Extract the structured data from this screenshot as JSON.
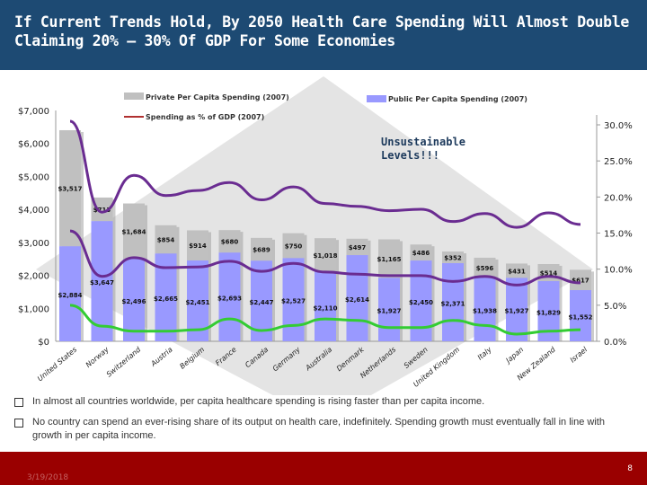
{
  "slide": {
    "title": "If Current Trends Hold, By 2050 Health Care Spending Will Almost Double Claiming 20% – 30% Of GDP For Some Economies",
    "bullets": [
      "In almost all countries worldwide, per capita healthcare spending is rising faster than per capita income.",
      "No country can spend an ever-rising share of its output on health care, indefinitely. Spending growth must eventually fall in line with growth in per capita income."
    ],
    "date": "3/19/2018",
    "page_number": "8",
    "annotation": "Unsustainable Levels!!!"
  },
  "colors": {
    "title_bar": "#1d4a73",
    "footer": "#9a0000",
    "private": "#c0c0c0",
    "public": "#9999ff",
    "purple_line": "#6a2c91",
    "green_line": "#33cc33",
    "legend_line": "#b03030"
  },
  "chart_data": {
    "type": "bar",
    "stacked": true,
    "categories": [
      "United States",
      "Norway",
      "Switzerland",
      "Austria",
      "Belgium",
      "France",
      "Canada",
      "Germany",
      "Australia",
      "Denmark",
      "Netherlands",
      "Sweden",
      "United Kingdom",
      "Italy",
      "Japan",
      "New Zealand",
      "Israel"
    ],
    "series": [
      {
        "name": "Public Per Capita Spending (2007)",
        "axis": "left",
        "values": [
          2884,
          3647,
          2496,
          2665,
          2451,
          2693,
          2447,
          2527,
          2110,
          2614,
          1927,
          2450,
          2371,
          1938,
          1927,
          1829,
          1552
        ],
        "labels": [
          "$2,884",
          "$3,647",
          "$2,496",
          "$2,665",
          "$2,451",
          "$2,693",
          "$2,447",
          "$2,527",
          "$2,110",
          "$2,614",
          "$1,927",
          "$2,450",
          "$2,371",
          "$1,938",
          "$1,927",
          "$1,829",
          "$1,552"
        ]
      },
      {
        "name": "Private Per Capita Spending (2007)",
        "axis": "left",
        "values": [
          3517,
          713,
          1684,
          854,
          914,
          680,
          689,
          750,
          1018,
          497,
          1165,
          486,
          352,
          596,
          431,
          514,
          617
        ],
        "labels": [
          "$3,517",
          "$713",
          "$1,684",
          "$854",
          "$914",
          "$680",
          "$689",
          "$750",
          "$1,018",
          "$497",
          "$1,165",
          "$486",
          "$352",
          "$596",
          "$431",
          "$514",
          "$617"
        ]
      }
    ],
    "lines": [
      {
        "axis": "right",
        "color": "#6a2c91",
        "values": [
          30.5,
          17.9,
          23,
          20.2,
          20.9,
          22,
          19.6,
          21.4,
          19.1,
          18.7,
          18.1,
          18.3,
          16.6,
          17.7,
          15.8,
          17.8,
          16.2
        ]
      },
      {
        "axis": "right",
        "color": "#6a2c91",
        "values": [
          15.3,
          9.0,
          11.6,
          10.2,
          10.3,
          11.1,
          9.7,
          10.8,
          9.6,
          9.3,
          9.1,
          9.1,
          8.3,
          9.0,
          7.8,
          9.0,
          8.1
        ]
      },
      {
        "axis": "right",
        "color": "#33cc33",
        "values": [
          5.0,
          2.1,
          1.4,
          1.4,
          1.6,
          3.1,
          1.5,
          2.2,
          3.1,
          2.9,
          1.9,
          1.9,
          2.9,
          2.2,
          1.0,
          1.4,
          1.6
        ]
      }
    ],
    "legend_line_label": "Spending as % of GDP (2007)",
    "left_axis": {
      "ylim": [
        0,
        7000
      ],
      "ticks": [
        "$0",
        "$1,000",
        "$2,000",
        "$3,000",
        "$4,000",
        "$5,000",
        "$6,000",
        "$7,000"
      ]
    },
    "right_axis": {
      "ylim": [
        0,
        30
      ],
      "ticks": [
        "0.0%",
        "5.0%",
        "10.0%",
        "15.0%",
        "20.0%",
        "25.0%",
        "30.0%"
      ]
    },
    "grid": false
  }
}
